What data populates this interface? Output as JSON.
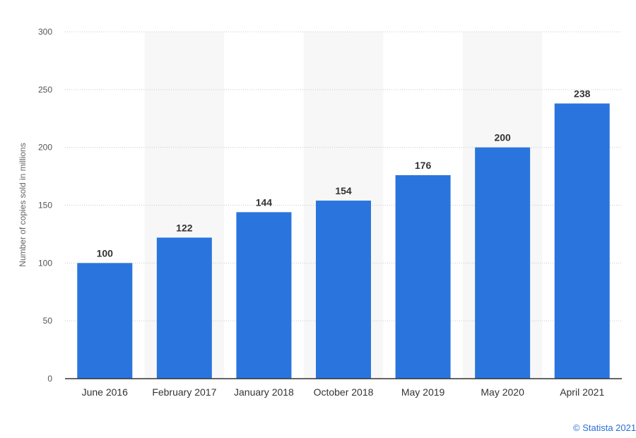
{
  "chart_data": {
    "type": "bar",
    "categories": [
      "June 2016",
      "February 2017",
      "January 2018",
      "October 2018",
      "May 2019",
      "May 2020",
      "April 2021"
    ],
    "values": [
      100,
      122,
      144,
      154,
      176,
      200,
      238
    ],
    "title": "",
    "xlabel": "",
    "ylabel": "Number of copies sold in millions",
    "ylim": [
      0,
      300
    ],
    "yticks": [
      0,
      50,
      100,
      150,
      200,
      250,
      300
    ],
    "grid": true,
    "bar_color": "#2a75dd",
    "band_color": "#f7f7f7",
    "legend": "none"
  },
  "credit": "© Statista 2021"
}
